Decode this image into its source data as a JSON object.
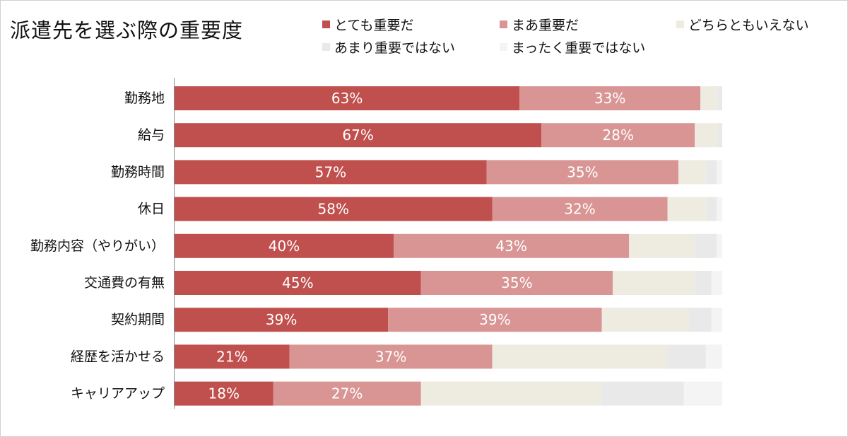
{
  "chart_data": {
    "type": "bar",
    "orientation": "horizontal",
    "stacked": true,
    "title": "派遣先を選ぶ際の重要度",
    "categories": [
      "勤務地",
      "給与",
      "勤務時間",
      "休日",
      "勤務内容（やりがい）",
      "交通費の有無",
      "契約期間",
      "経歴を活かせる",
      "キャリアアップ"
    ],
    "series": [
      {
        "name": "とても重要だ",
        "color": "#c0504d",
        "values": [
          63,
          67,
          57,
          58,
          40,
          45,
          39,
          21,
          18
        ]
      },
      {
        "name": "まあ重要だ",
        "color": "#d99594",
        "values": [
          33,
          28,
          35,
          32,
          43,
          35,
          39,
          37,
          27
        ]
      },
      {
        "name": "どちらともいえない",
        "color": "#eeece1",
        "values": [
          3,
          4,
          5,
          7,
          12,
          15,
          16,
          32,
          33
        ]
      },
      {
        "name": "あまり重要ではない",
        "color": "#e9e9e9",
        "values": [
          1,
          1,
          2,
          2,
          4,
          3,
          4,
          7,
          15
        ]
      },
      {
        "name": "まったく重要ではない",
        "color": "#f4f4f4",
        "values": [
          0,
          0,
          1,
          1,
          1,
          2,
          2,
          3,
          7
        ]
      }
    ],
    "data_labels": {
      "series": [
        0,
        1
      ],
      "format": "{v}%"
    },
    "xlim": [
      0,
      100
    ],
    "grid": false,
    "legend_position": "top-right"
  }
}
